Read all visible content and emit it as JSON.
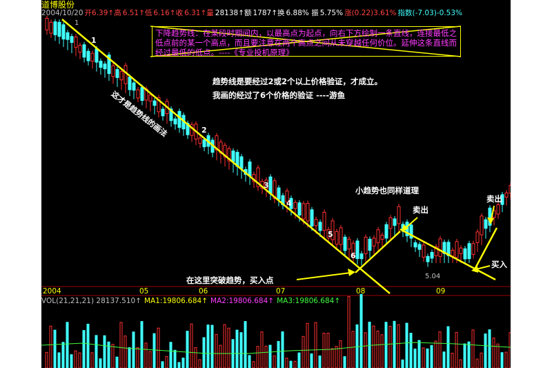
{
  "header": {
    "stock_name": "道博股份",
    "quote_items": [
      {
        "text": "2004/10/20",
        "color": "#c0c0c0"
      },
      {
        "text": "开6.39↑高",
        "color": "#ff4040"
      },
      {
        "text": "6.51↑低",
        "color": "#ff4040"
      },
      {
        "text": "6.16↑收",
        "color": "#ff4040"
      },
      {
        "text": "6.31↑量",
        "color": "#ff4040"
      },
      {
        "text": "28138↑额",
        "color": "#ffffff"
      },
      {
        "text": "1787↑换",
        "color": "#ffffff"
      },
      {
        "text": "6.88% 振",
        "color": "#ffffff"
      },
      {
        "text": "5.75%",
        "color": "#ffffff"
      },
      {
        "text": "涨(0.22)3.61%",
        "color": "#ff4040"
      },
      {
        "text": "指数(-7.03)-0.53%",
        "color": "#40ffff"
      }
    ]
  },
  "annotations": {
    "box_text": "下降趋势线：在某段时期间内，以最高点为起点，向右下方绘制一条直线，连接最低之低点前的某一个高点，而且要注意在两个高点之间从未穿越任何价位。延伸这条直线而经过最低的低点。----《专业投机原理》",
    "diag_label": "这才是趋势线的画法",
    "verify_1": "趋势线是要经过2或2个以上价格验证，才成立。",
    "verify_2": "我画的经过了6个价格的验证 ----游鱼",
    "small_trend": "小趋势也同样道理",
    "sell_1": "卖出",
    "sell_2": "卖出",
    "buy_1": "在这里突破趋势，买入点",
    "buy_2": "买入",
    "low_price": "5.04",
    "point_labels": [
      "1",
      "2",
      "3",
      "4",
      "5",
      "6"
    ],
    "marker_label": "1"
  },
  "x_axis": [
    "2004",
    "05",
    "06",
    "07",
    "08",
    "09"
  ],
  "volume_header": [
    {
      "text": "VOL(21,21,21) 28137.510↑",
      "color": "#c0c0c0"
    },
    {
      "text": "MA1:19806.684↑",
      "color": "#ffff00"
    },
    {
      "text": "MA2:19806.684↑",
      "color": "#ff40ff"
    },
    {
      "text": "MA3:19806.684↑",
      "color": "#40ff40"
    }
  ],
  "colors": {
    "up": "#ff3030",
    "down": "#40ffff",
    "trend": "#ffff00",
    "background": "#000000",
    "grid": "#a00000"
  }
}
